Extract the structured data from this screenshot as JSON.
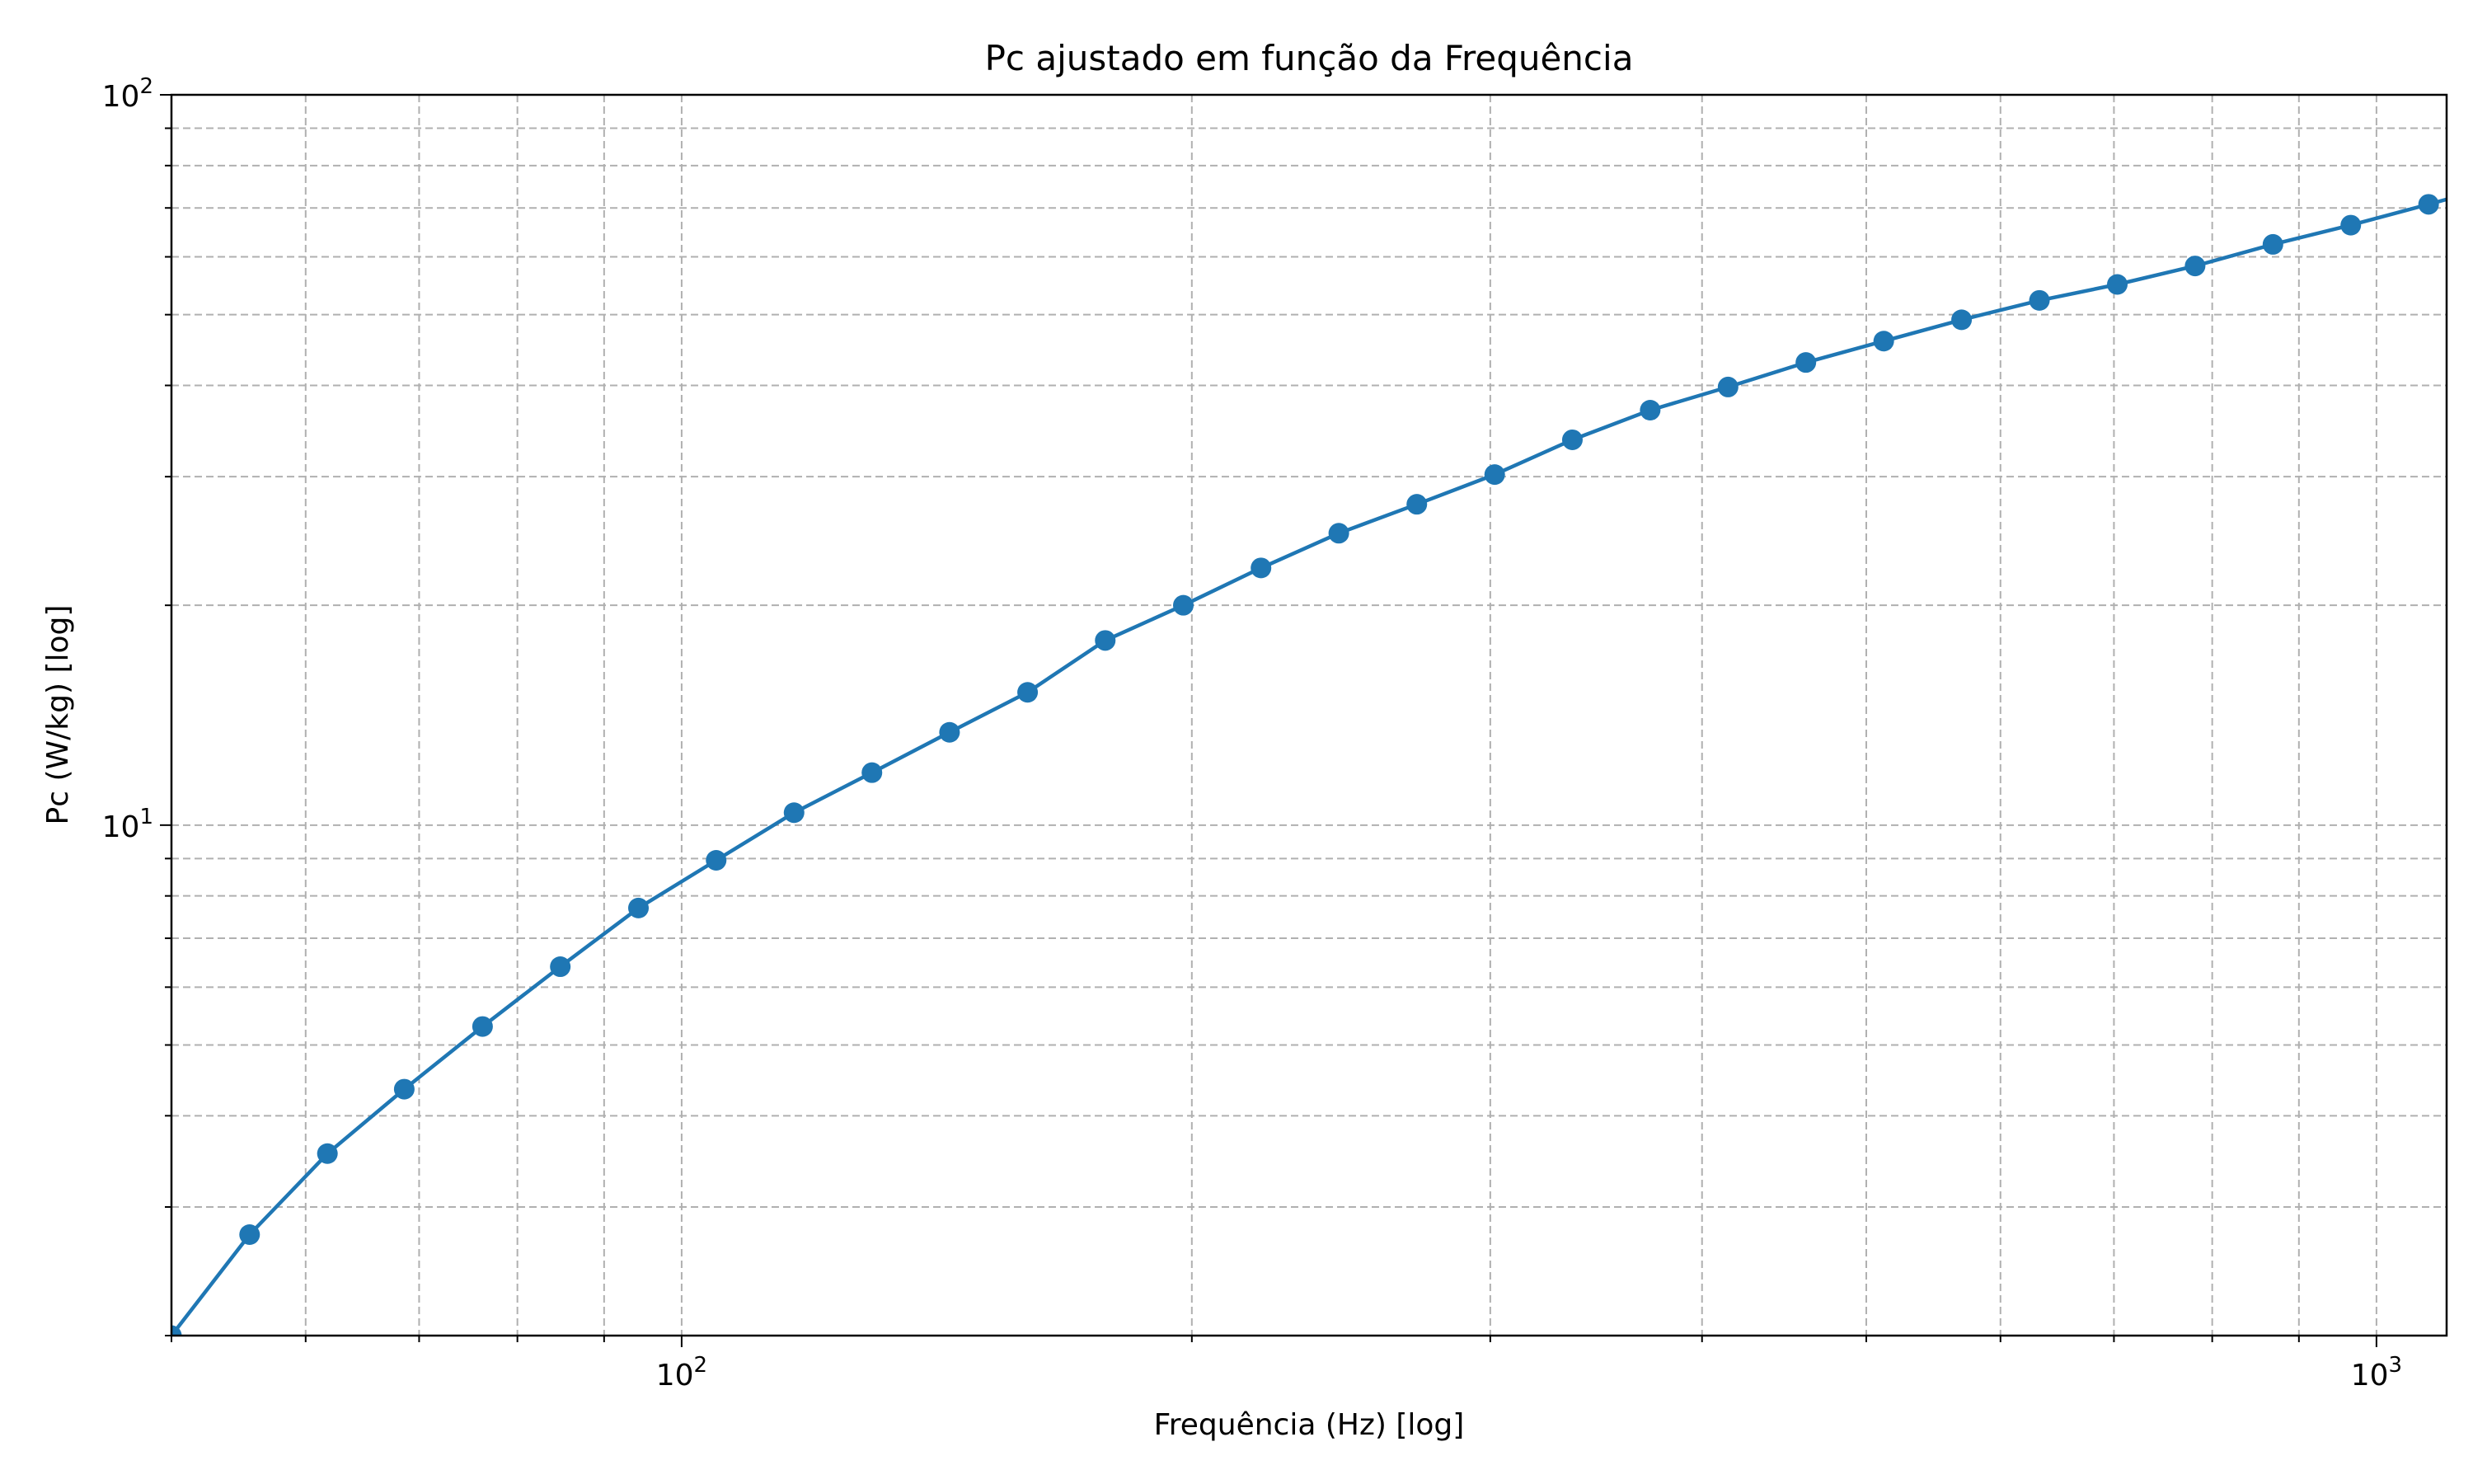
{
  "chart_data": {
    "type": "line",
    "title": "Pc ajustado em função da Frequência",
    "xlabel": "Frequência (Hz) [log]",
    "ylabel": "Pc (W/kg) [log]",
    "xscale": "log",
    "yscale": "log",
    "xlim": [
      50,
      1100
    ],
    "ylim": [
      2,
      100
    ],
    "grid": true,
    "grid_style": "dashed",
    "x_tick_labels": [
      {
        "value": 100,
        "base": "10",
        "exp": "2"
      },
      {
        "value": 1000,
        "base": "10",
        "exp": "3"
      }
    ],
    "y_tick_labels": [
      {
        "value": 10,
        "base": "10",
        "exp": "1"
      },
      {
        "value": 100,
        "base": "10",
        "exp": "2"
      }
    ],
    "series": [
      {
        "color": "#1f77b4",
        "marker": "circle",
        "x": [
          50,
          55.6,
          61.8,
          68.6,
          76.3,
          84.8,
          94.3,
          104.8,
          116.5,
          129.5,
          143.9,
          160,
          177.8,
          197.7,
          219.7,
          244.2,
          271.5,
          301.8,
          335.4,
          372.8,
          414.4,
          460.6,
          512,
          569.1,
          632.6,
          703.2,
          781.6,
          868.8,
          965.7,
          1073.4,
          1193.3
        ],
        "y": [
          2.0,
          2.75,
          3.55,
          4.35,
          5.3,
          6.4,
          7.7,
          8.95,
          10.4,
          11.8,
          13.4,
          15.2,
          17.9,
          20,
          22.5,
          25.1,
          27.5,
          30.2,
          33.7,
          37,
          39.8,
          43,
          46,
          49.2,
          52.3,
          55,
          58.3,
          62.4,
          66.3,
          70.8,
          75.7
        ]
      }
    ]
  }
}
